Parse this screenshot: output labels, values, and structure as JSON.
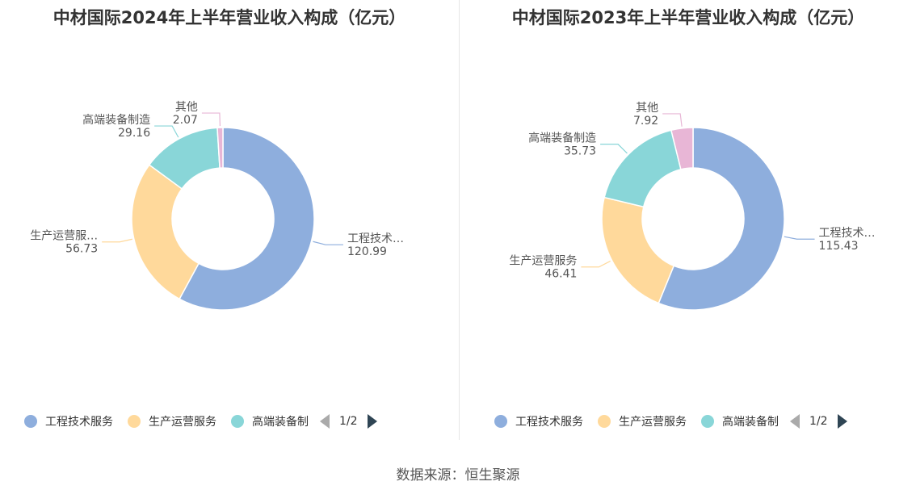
{
  "chart_data": [
    {
      "type": "pie",
      "title": "中材国际2024年上半年营业收入构成（亿元）",
      "slices": [
        {
          "name": "工程技术服务",
          "label": "工程技术…",
          "value": 120.99,
          "value_label": "120.99",
          "color": "#8eaedd"
        },
        {
          "name": "生产运营服务",
          "label": "生产运营服…",
          "value": 56.73,
          "value_label": "56.73",
          "color": "#ffd99b"
        },
        {
          "name": "高端装备制造",
          "label": "高端装备制造",
          "value": 29.16,
          "value_label": "29.16",
          "color": "#89d6d8"
        },
        {
          "name": "其他",
          "label": "其他",
          "value": 2.07,
          "value_label": "2.07",
          "color": "#e8b6d6"
        }
      ],
      "legend": {
        "position": "bottom-left",
        "items": [
          "工程技术服务",
          "生产运营服务",
          "高端装备制"
        ],
        "page": "1/2"
      }
    },
    {
      "type": "pie",
      "title": "中材国际2023年上半年营业收入构成（亿元）",
      "slices": [
        {
          "name": "工程技术服务",
          "label": "工程技术…",
          "value": 115.43,
          "value_label": "115.43",
          "color": "#8eaedd"
        },
        {
          "name": "生产运营服务",
          "label": "生产运营服务",
          "value": 46.41,
          "value_label": "46.41",
          "color": "#ffd99b"
        },
        {
          "name": "高端装备制造",
          "label": "高端装备制造",
          "value": 35.73,
          "value_label": "35.73",
          "color": "#89d6d8"
        },
        {
          "name": "其他",
          "label": "其他",
          "value": 7.92,
          "value_label": "7.92",
          "color": "#e8b6d6"
        }
      ],
      "legend": {
        "position": "bottom-left",
        "items": [
          "工程技术服务",
          "生产运营服务",
          "高端装备制"
        ],
        "page": "1/2"
      }
    }
  ],
  "footer": {
    "source": "数据来源：恒生聚源"
  }
}
